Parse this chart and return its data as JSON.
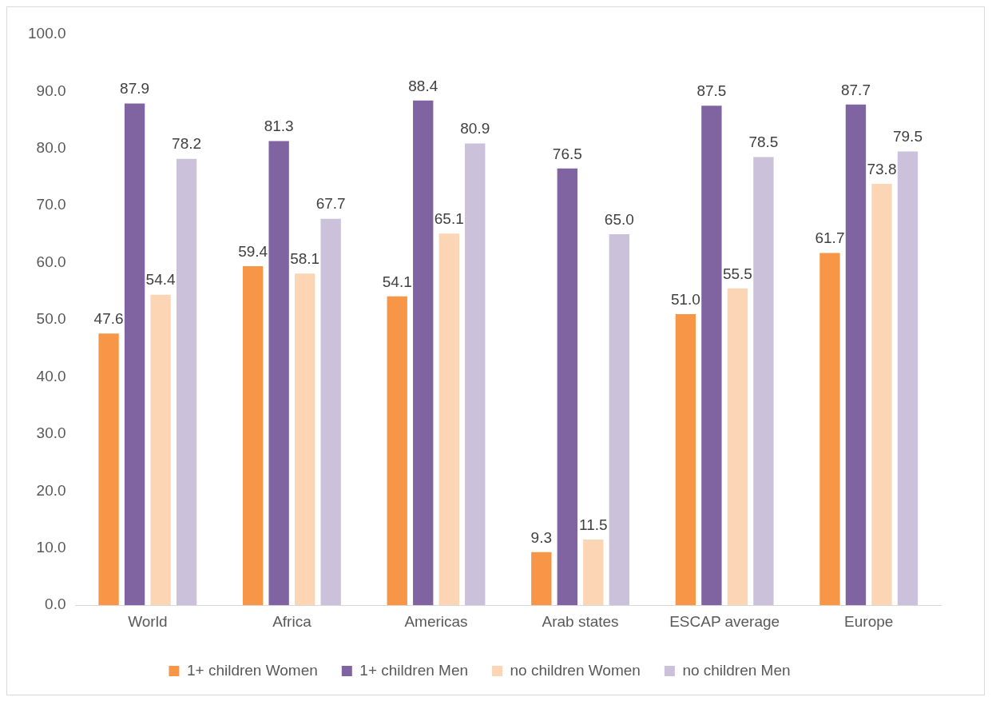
{
  "chart_data": {
    "type": "bar",
    "categories": [
      "World",
      "Africa",
      "Americas",
      "Arab states",
      "ESCAP average",
      "Europe"
    ],
    "series": [
      {
        "name": "1+ children Women",
        "color": "#f79646",
        "values": [
          47.6,
          59.4,
          54.1,
          9.3,
          51.0,
          61.7
        ],
        "value_labels": [
          "47.6",
          "59.4",
          "54.1",
          "9.3",
          "51.0",
          "61.7"
        ]
      },
      {
        "name": "1+ children Men",
        "color": "#8064a2",
        "values": [
          87.9,
          81.3,
          88.4,
          76.5,
          87.5,
          87.7
        ],
        "value_labels": [
          "87.9",
          "81.3",
          "88.4",
          "76.5",
          "87.5",
          "87.7"
        ]
      },
      {
        "name": "no children Women",
        "color": "#fcd5b5",
        "values": [
          54.4,
          58.1,
          65.1,
          11.5,
          55.5,
          73.8
        ],
        "value_labels": [
          "54.4",
          "58.1",
          "65.1",
          "11.5",
          "55.5",
          "73.8"
        ]
      },
      {
        "name": "no children Men",
        "color": "#ccc1da",
        "values": [
          78.2,
          67.7,
          80.9,
          65.0,
          78.5,
          79.5
        ],
        "value_labels": [
          "78.2",
          "67.7",
          "80.9",
          "65.0",
          "78.5",
          "79.5"
        ]
      }
    ],
    "ylim": [
      0,
      100
    ],
    "yticks": [
      {
        "value": 0,
        "label": "0.0"
      },
      {
        "value": 10,
        "label": "10.0"
      },
      {
        "value": 20,
        "label": "20.0"
      },
      {
        "value": 30,
        "label": "30.0"
      },
      {
        "value": 40,
        "label": "40.0"
      },
      {
        "value": 50,
        "label": "50.0"
      },
      {
        "value": 60,
        "label": "60.0"
      },
      {
        "value": 70,
        "label": "70.0"
      },
      {
        "value": 80,
        "label": "80.0"
      },
      {
        "value": 90,
        "label": "90.0"
      },
      {
        "value": 100,
        "label": "100.0"
      }
    ],
    "grid": false,
    "legend": "bottom"
  }
}
